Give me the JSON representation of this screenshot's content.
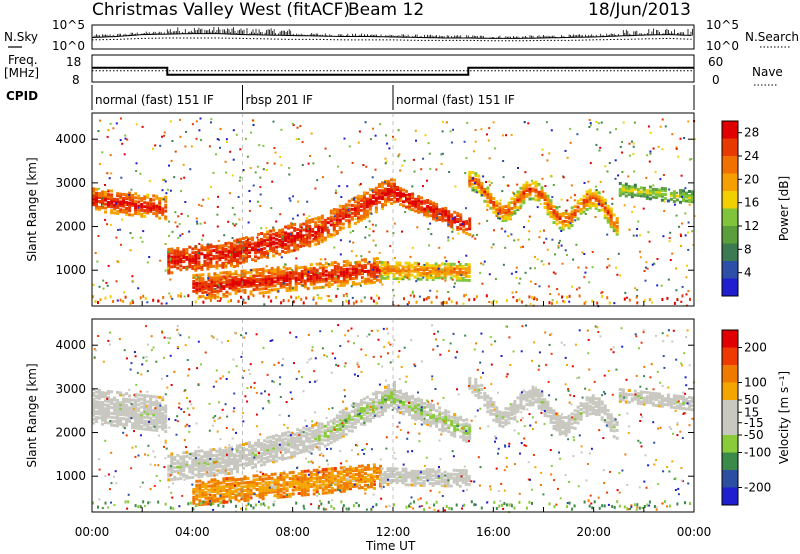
{
  "header": {
    "title": "Christmas Valley West (fitACF)",
    "beam": "Beam 12",
    "date": "18/Jun/2013"
  },
  "side_labels": {
    "nsky": "N.Sky",
    "nsearch": "N.Search",
    "freq_line1": "Freq.",
    "freq_line2": "[MHz]",
    "nave": "Nave",
    "cpid": "CPID"
  },
  "noise_axis": {
    "left_ticks": [
      "10^5",
      "10^0"
    ],
    "right_ticks": [
      "10^5",
      "10^0"
    ]
  },
  "freq_axis": {
    "left_ticks": [
      "18",
      "8"
    ],
    "right_ticks": [
      "60",
      "0"
    ]
  },
  "modes": [
    {
      "name": "normal (fast) 151 IF",
      "start": 0.0,
      "end": 6.0
    },
    {
      "name": "rbsp 201 IF",
      "start": 6.0,
      "end": 12.0
    },
    {
      "name": "normal (fast) 151 IF",
      "start": 12.0,
      "end": 24.0
    }
  ],
  "chart_data": [
    {
      "type": "line",
      "name": "noise",
      "x": [
        0,
        1,
        2,
        3,
        4,
        5,
        6,
        7,
        8,
        9,
        10,
        11,
        12,
        13,
        14,
        15,
        16,
        17,
        18,
        19,
        20,
        21,
        22,
        23,
        24
      ],
      "series": [
        {
          "name": "N.Sky",
          "values": [
            2.4,
            2.6,
            3.0,
            3.1,
            3.2,
            3.2,
            3.0,
            2.9,
            2.8,
            2.7,
            2.6,
            2.6,
            2.5,
            2.4,
            2.3,
            2.3,
            2.2,
            2.2,
            2.3,
            2.4,
            2.5,
            2.7,
            2.9,
            3.0,
            2.8
          ]
        },
        {
          "name": "N.Search",
          "values": [
            1.9,
            2.0,
            2.2,
            2.3,
            2.3,
            2.3,
            2.2,
            2.1,
            2.0,
            2.0,
            1.9,
            1.9,
            1.9,
            1.8,
            1.8,
            1.8,
            1.7,
            1.7,
            1.8,
            1.8,
            1.9,
            2.0,
            2.1,
            2.2,
            2.0
          ]
        }
      ]
    },
    {
      "type": "line",
      "name": "frequency",
      "x": [
        0,
        3,
        3,
        15,
        15,
        24
      ],
      "series": [
        {
          "name": "Freq.",
          "values": [
            13.3,
            13.3,
            10.7,
            10.7,
            13.3,
            13.3
          ]
        },
        {
          "name": "Nave",
          "values": [
            25,
            25,
            25,
            25,
            25,
            25
          ]
        }
      ]
    },
    {
      "type": "heatmap",
      "name": "power",
      "xlabel": "",
      "ylabel": "Slant Range [km]",
      "xlim": [
        0,
        24
      ],
      "ylim": [
        180,
        4600
      ],
      "yticks": [
        1000,
        2000,
        3000,
        4000
      ],
      "colorbar": {
        "label": "Power [dB]",
        "ticks": [
          4,
          8,
          12,
          16,
          20,
          24,
          28
        ],
        "range": [
          0,
          30
        ]
      }
    },
    {
      "type": "heatmap",
      "name": "velocity",
      "xlabel": "Time UT",
      "ylabel": "Slant Range [km]",
      "xlim": [
        0,
        24
      ],
      "ylim": [
        180,
        4600
      ],
      "yticks": [
        1000,
        2000,
        3000,
        4000
      ],
      "xticks": [
        "00:00",
        "04:00",
        "08:00",
        "12:00",
        "16:00",
        "20:00",
        "00:00"
      ],
      "colorbar": {
        "label": "Velocity [m s⁻¹]",
        "ticks": [
          200,
          100,
          50,
          15,
          -15,
          -50,
          -100,
          -200
        ],
        "range": [
          -250,
          250
        ]
      }
    }
  ],
  "colors": {
    "power": [
      "#1f1fd0",
      "#2e4fa8",
      "#3c7a52",
      "#5a9f3c",
      "#7fc43a",
      "#f0d000",
      "#f5a000",
      "#f07000",
      "#e83a00",
      "#e00000"
    ],
    "velocity": [
      "#e00000",
      "#ee3a00",
      "#f07a00",
      "#f5a500",
      "#c8c8c0",
      "#c8c8c0",
      "#8acb3a",
      "#3c8a4a",
      "#2c4ea0",
      "#1f1fd0"
    ]
  }
}
